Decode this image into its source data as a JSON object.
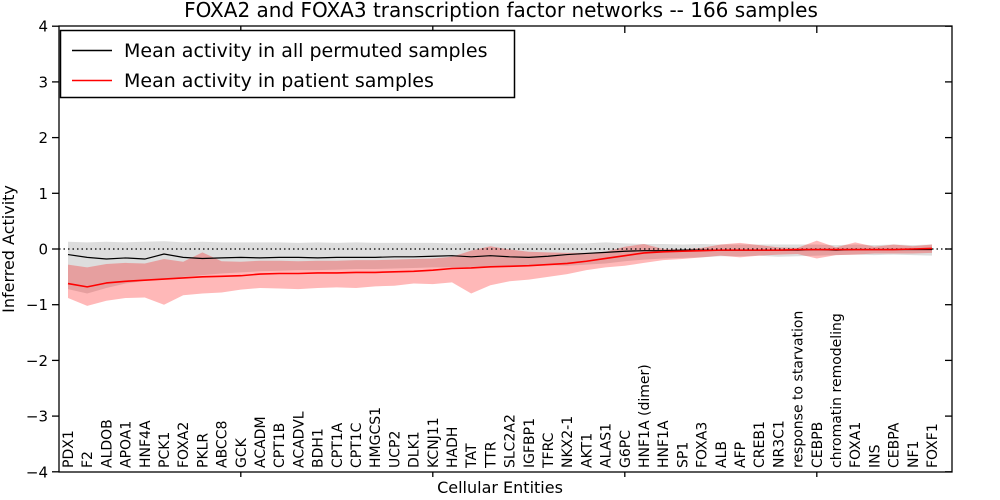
{
  "chart_data": {
    "type": "line",
    "title": "FOXA2 and FOXA3 transcription factor networks -- 166 samples",
    "xlabel": "Cellular Entities",
    "ylabel": "Inferred Activity",
    "ylim": [
      -4,
      4
    ],
    "yticks": [
      4,
      3,
      2,
      1,
      0,
      -1,
      -2,
      -3,
      -4
    ],
    "ytick_labels": [
      "4",
      "3",
      "2",
      "1",
      "0",
      "−1",
      "−2",
      "−3",
      "−4"
    ],
    "grid": false,
    "zero_line_style": "dotted",
    "legend_position": "upper left",
    "x_major_tick_indices": [
      9,
      19,
      29,
      39
    ],
    "categories": [
      "PDX1",
      "F2",
      "ALDOB",
      "APOA1",
      "HNF4A",
      "PCK1",
      "FOXA2",
      "PKLR",
      "ABCC8",
      "GCK",
      "ACADM",
      "CPT1B",
      "ACADVL",
      "BDH1",
      "CPT1A",
      "CPT1C",
      "HMGCS1",
      "UCP2",
      "DLK1",
      "KCNJ11",
      "HADH",
      "TAT",
      "TTR",
      "SLC2A2",
      "IGFBP1",
      "TFRC",
      "NKX2-1",
      "AKT1",
      "ALAS1",
      "G6PC",
      "HNF1A (dimer)",
      "HNF1A",
      "SP1",
      "FOXA3",
      "ALB",
      "AFP",
      "CREB1",
      "NR3C1",
      "response to starvation",
      "CEBPB",
      "chromatin remodeling",
      "FOXA1",
      "INS",
      "CEBPA",
      "NF1",
      "FOXF1"
    ],
    "series": [
      {
        "name": "Mean activity in all permuted samples",
        "color": "#000000",
        "line_width": 1.2,
        "values": [
          -0.1,
          -0.15,
          -0.18,
          -0.16,
          -0.18,
          -0.09,
          -0.15,
          -0.17,
          -0.16,
          -0.15,
          -0.16,
          -0.15,
          -0.15,
          -0.16,
          -0.15,
          -0.15,
          -0.15,
          -0.14,
          -0.14,
          -0.13,
          -0.12,
          -0.14,
          -0.12,
          -0.14,
          -0.15,
          -0.13,
          -0.1,
          -0.08,
          -0.06,
          -0.04,
          -0.03,
          -0.03,
          -0.02,
          -0.02,
          -0.02,
          -0.02,
          -0.02,
          -0.02,
          -0.02,
          -0.01,
          -0.02,
          -0.01,
          -0.01,
          -0.01,
          -0.01,
          -0.01
        ],
        "band": {
          "fill": "#808080",
          "opacity": 0.27,
          "upper": [
            0.13,
            0.12,
            0.13,
            0.12,
            0.13,
            0.14,
            0.12,
            0.13,
            0.12,
            0.12,
            0.12,
            0.12,
            0.11,
            0.12,
            0.11,
            0.12,
            0.11,
            0.11,
            0.11,
            0.11,
            0.1,
            0.11,
            0.1,
            0.1,
            0.1,
            0.1,
            0.1,
            0.1,
            0.12,
            0.1,
            0.09,
            0.09,
            0.08,
            0.09,
            0.08,
            0.08,
            0.08,
            0.08,
            0.08,
            0.08,
            0.07,
            0.08,
            0.07,
            0.08,
            0.07,
            0.08
          ],
          "lower": [
            -0.72,
            -0.8,
            -0.7,
            -0.62,
            -0.57,
            -0.55,
            -0.5,
            -0.47,
            -0.44,
            -0.42,
            -0.4,
            -0.39,
            -0.38,
            -0.38,
            -0.37,
            -0.36,
            -0.36,
            -0.35,
            -0.34,
            -0.33,
            -0.33,
            -0.32,
            -0.31,
            -0.31,
            -0.3,
            -0.29,
            -0.3,
            -0.28,
            -0.26,
            -0.22,
            -0.19,
            -0.17,
            -0.16,
            -0.15,
            -0.13,
            -0.13,
            -0.12,
            -0.14,
            -0.13,
            -0.12,
            -0.11,
            -0.1,
            -0.11,
            -0.1,
            -0.11,
            -0.12
          ]
        }
      },
      {
        "name": "Mean activity in patient samples",
        "color": "#ff0000",
        "line_width": 1.6,
        "values": [
          -0.62,
          -0.68,
          -0.61,
          -0.58,
          -0.56,
          -0.54,
          -0.52,
          -0.5,
          -0.49,
          -0.48,
          -0.45,
          -0.44,
          -0.44,
          -0.43,
          -0.43,
          -0.42,
          -0.42,
          -0.41,
          -0.4,
          -0.38,
          -0.35,
          -0.34,
          -0.32,
          -0.31,
          -0.3,
          -0.28,
          -0.26,
          -0.22,
          -0.17,
          -0.12,
          -0.07,
          -0.05,
          -0.04,
          -0.03,
          -0.02,
          -0.02,
          -0.02,
          -0.02,
          -0.01,
          -0.01,
          -0.01,
          -0.01,
          -0.01,
          -0.01,
          0.0,
          0.01
        ],
        "band": {
          "fill": "#ff0000",
          "opacity": 0.28,
          "upper": [
            -0.28,
            -0.33,
            -0.27,
            -0.25,
            -0.26,
            -0.18,
            -0.23,
            -0.06,
            -0.22,
            -0.23,
            -0.21,
            -0.21,
            -0.22,
            -0.21,
            -0.21,
            -0.2,
            -0.2,
            -0.19,
            -0.18,
            -0.17,
            -0.14,
            -0.03,
            0.05,
            -0.01,
            -0.05,
            -0.06,
            -0.07,
            -0.07,
            -0.05,
            0.04,
            0.09,
            0.0,
            -0.01,
            0.02,
            0.08,
            0.11,
            0.07,
            0.03,
            0.02,
            0.15,
            0.03,
            0.12,
            0.04,
            0.08,
            0.05,
            0.08
          ],
          "lower": [
            -0.88,
            -1.02,
            -0.93,
            -0.88,
            -0.87,
            -1.0,
            -0.83,
            -0.8,
            -0.78,
            -0.73,
            -0.7,
            -0.71,
            -0.72,
            -0.7,
            -0.69,
            -0.7,
            -0.67,
            -0.66,
            -0.62,
            -0.63,
            -0.6,
            -0.8,
            -0.65,
            -0.58,
            -0.55,
            -0.5,
            -0.45,
            -0.38,
            -0.33,
            -0.3,
            -0.25,
            -0.2,
            -0.18,
            -0.15,
            -0.12,
            -0.15,
            -0.12,
            -0.1,
            -0.09,
            -0.17,
            -0.11,
            -0.1,
            -0.08,
            -0.08,
            -0.08,
            -0.07
          ]
        }
      }
    ]
  }
}
